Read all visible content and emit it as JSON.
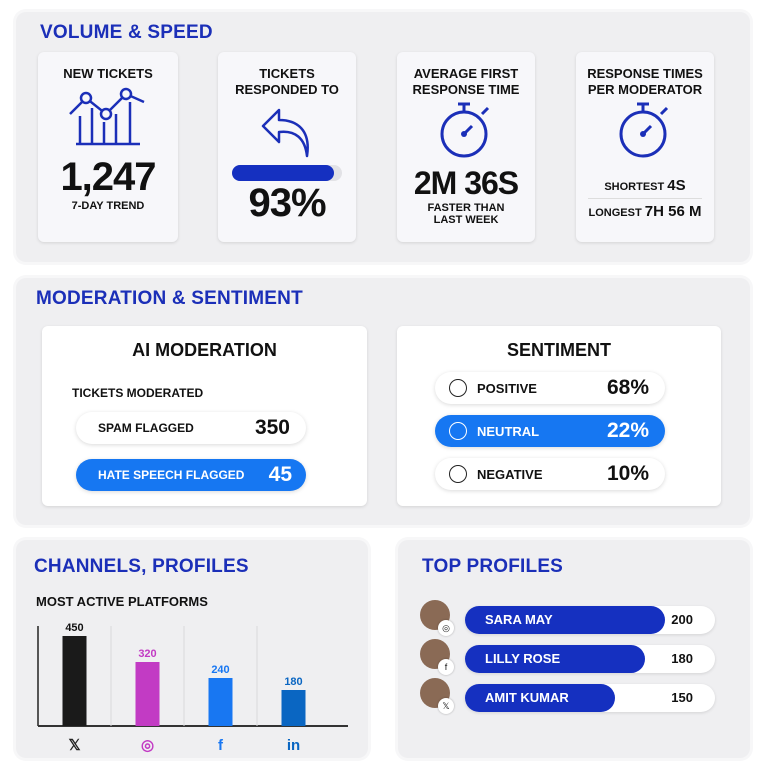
{
  "volume": {
    "title": "VOLUME & SPEED",
    "new_tickets": {
      "title": "NEW TICKETS",
      "value": "1,247",
      "sub": "7-DAY TREND",
      "icon": "trend-chart-icon"
    },
    "responded": {
      "title_line1": "TICKETS",
      "title_line2": "RESPONDED TO",
      "value": "93%",
      "progress": 0.93,
      "icon": "reply-arrow-icon"
    },
    "avg_first": {
      "title_line1": "AVERAGE FIRST",
      "title_line2": "RESPONSE TIME",
      "value": "2M 36S",
      "sub_line1": "FASTER THAN",
      "sub_line2": "LAST WEEK",
      "icon": "stopwatch-icon"
    },
    "per_mod": {
      "title_line1": "RESPONSE TIMES",
      "title_line2": "PER MODERATOR",
      "shortest_label": "SHORTEST",
      "shortest_value": "4S",
      "longest_label": "LONGEST",
      "longest_value": "7H 56 M",
      "icon": "stopwatch-icon"
    }
  },
  "moderation": {
    "title": "MODERATION & SENTIMENT",
    "ai": {
      "title": "AI MODERATION",
      "subtitle": "TICKETS MODERATED",
      "items": [
        {
          "label": "SPAM FLAGGED",
          "value": "350"
        },
        {
          "label": "HATE SPEECH FLAGGED",
          "value": "45"
        }
      ]
    },
    "sentiment": {
      "title": "SENTIMENT",
      "items": [
        {
          "label": "POSITIVE",
          "value": "68%"
        },
        {
          "label": "NEUTRAL",
          "value": "22%"
        },
        {
          "label": "NEGATIVE",
          "value": "10%"
        }
      ]
    }
  },
  "channels": {
    "title": "CHANNELS, PROFILES",
    "subtitle": "MOST ACTIVE PLATFORMS"
  },
  "chart_data": {
    "type": "bar",
    "title": "MOST ACTIVE PLATFORMS",
    "categories": [
      "X",
      "Instagram",
      "Facebook",
      "LinkedIn"
    ],
    "values": [
      450,
      320,
      240,
      180
    ],
    "labels": [
      "450",
      "320",
      "240",
      "180"
    ],
    "colors": [
      "#1a1a1a",
      "#c23bc4",
      "#1877f2",
      "#0a66c2"
    ],
    "ylim": [
      0,
      500
    ],
    "grid": false
  },
  "top_profiles": {
    "title": "TOP PROFILES",
    "max": 250,
    "items": [
      {
        "name": "SARA MAY",
        "value": "200",
        "platform": "instagram-icon"
      },
      {
        "name": "LILLY ROSE",
        "value": "180",
        "platform": "facebook-icon"
      },
      {
        "name": "AMIT KUMAR",
        "value": "150",
        "platform": "x-icon"
      }
    ]
  },
  "colors": {
    "brand": "#1b2fb8",
    "accent": "#1677f2"
  }
}
